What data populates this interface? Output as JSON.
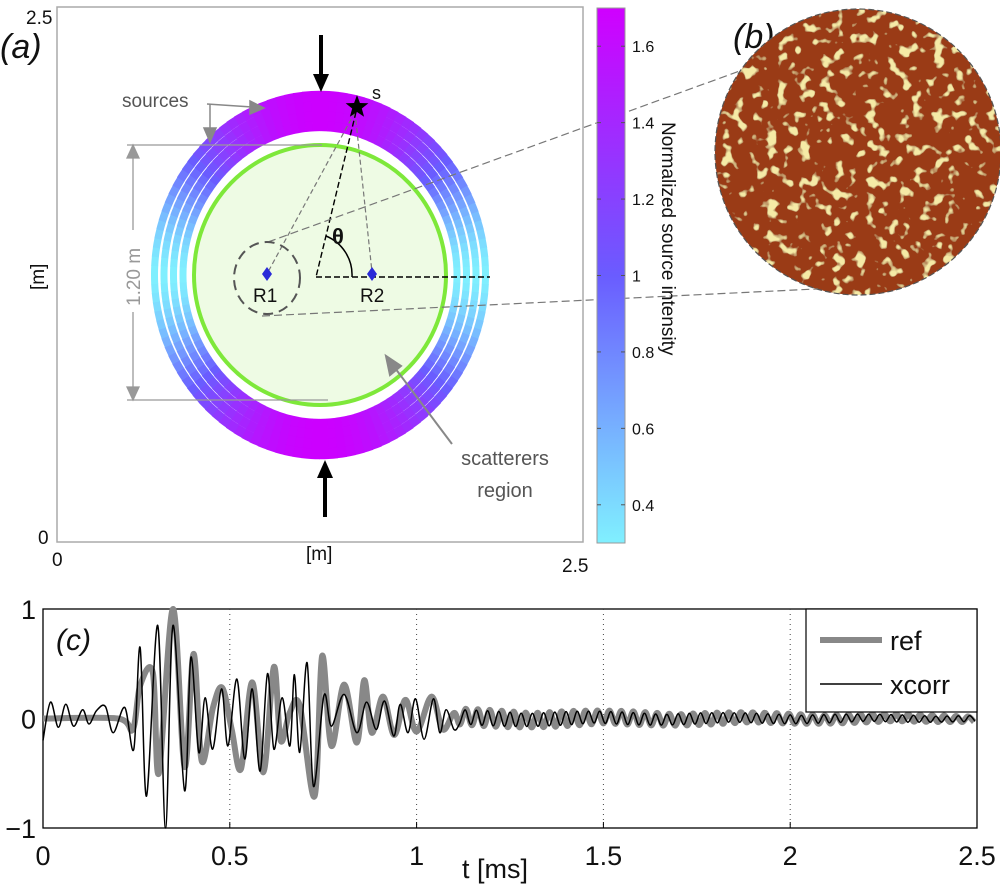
{
  "panel_a": {
    "label": "(a)",
    "x_ticks": [
      "0",
      "2.5"
    ],
    "y_ticks": [
      "0",
      "2.5"
    ],
    "x_unit": "[m]",
    "y_unit": "[m]",
    "sources_label": "sources",
    "source_label": "s",
    "receiver1": "R1",
    "receiver2": "R2",
    "angle_label": "θ",
    "diameter_label": "1.20 m",
    "region_label_1": "scatterers",
    "region_label_2": "region",
    "colors": {
      "high": "#cc00ff",
      "mid": "#6a5cff",
      "low": "#80f0ff",
      "scatter_ring": "#7ee83a",
      "scatter_fill": "#eefbe4",
      "receiver": "#2a2ad8"
    }
  },
  "colorbar": {
    "title": "Normalized source intensity",
    "range": [
      0.3,
      1.7
    ],
    "ticks": [
      "0.4",
      "0.6",
      "0.8",
      "1",
      "1.2",
      "1.4",
      "1.6"
    ]
  },
  "panel_b": {
    "label": "(b)",
    "colors": {
      "base": "#9a3a12",
      "speckle": "#e8d060"
    }
  },
  "chart_data": {
    "type": "line",
    "label": "(c)",
    "xlabel": "t [ms]",
    "ylabel": "",
    "xlim": [
      0,
      2.5
    ],
    "ylim": [
      -1,
      1
    ],
    "x_ticks": [
      "0",
      "0.5",
      "1",
      "1.5",
      "2",
      "2.5"
    ],
    "y_ticks": [
      "1",
      "0",
      "−1"
    ],
    "grid": "vertical dotted",
    "legend_position": "top-right",
    "series": [
      {
        "name": "ref",
        "color": "#888888",
        "points": [
          [
            0,
            0
          ],
          [
            0.2,
            0
          ],
          [
            0.24,
            -0.1
          ],
          [
            0.26,
            0.3
          ],
          [
            0.294,
            0.42
          ],
          [
            0.31,
            -0.5
          ],
          [
            0.348,
            1.0
          ],
          [
            0.379,
            -0.44
          ],
          [
            0.403,
            0.59
          ],
          [
            0.425,
            -0.39
          ],
          [
            0.455,
            0.1
          ],
          [
            0.48,
            0.28
          ],
          [
            0.505,
            -0.1
          ],
          [
            0.53,
            -0.46
          ],
          [
            0.56,
            0.33
          ],
          [
            0.59,
            -0.49
          ],
          [
            0.618,
            0.47
          ],
          [
            0.636,
            -0.2
          ],
          [
            0.66,
            0.05
          ],
          [
            0.687,
            0.12
          ],
          [
            0.727,
            -0.71
          ],
          [
            0.747,
            0.57
          ],
          [
            0.772,
            -0.25
          ],
          [
            0.806,
            0.31
          ],
          [
            0.84,
            -0.22
          ],
          [
            0.86,
            0.35
          ],
          [
            0.88,
            -0.13
          ],
          [
            0.91,
            0.2
          ],
          [
            0.94,
            -0.15
          ],
          [
            0.97,
            0.17
          ],
          [
            1.0,
            -0.12
          ],
          [
            1.04,
            0.2
          ],
          [
            1.07,
            -0.1
          ],
          [
            1.1,
            0.05
          ]
        ],
        "tail": {
          "t_start": 1.1,
          "t_end": 2.5,
          "period_ms": 0.032,
          "amplitude_start": 0.09,
          "amplitude_end": 0.03
        }
      },
      {
        "name": "xcorr",
        "color": "#000000",
        "points": [
          [
            0,
            -0.2
          ],
          [
            0.02,
            0.15
          ],
          [
            0.041,
            -0.08
          ],
          [
            0.061,
            0.13
          ],
          [
            0.082,
            -0.07
          ],
          [
            0.106,
            0.08
          ],
          [
            0.123,
            -0.05
          ],
          [
            0.143,
            0.07
          ],
          [
            0.167,
            0.11
          ],
          [
            0.188,
            -0.13
          ],
          [
            0.219,
            0.1
          ],
          [
            0.243,
            -0.28
          ],
          [
            0.26,
            0.65
          ],
          [
            0.277,
            -0.71
          ],
          [
            0.307,
            0.85
          ],
          [
            0.328,
            -1.0
          ],
          [
            0.348,
            0.85
          ],
          [
            0.379,
            -0.66
          ],
          [
            0.396,
            0.56
          ],
          [
            0.417,
            -0.31
          ],
          [
            0.434,
            0.19
          ],
          [
            0.454,
            -0.28
          ],
          [
            0.478,
            0.27
          ],
          [
            0.495,
            -0.25
          ],
          [
            0.519,
            0.36
          ],
          [
            0.54,
            -0.37
          ],
          [
            0.56,
            0.27
          ],
          [
            0.581,
            -0.48
          ],
          [
            0.601,
            0.41
          ],
          [
            0.618,
            -0.28
          ],
          [
            0.64,
            0.19
          ],
          [
            0.661,
            -0.25
          ],
          [
            0.673,
            0.4
          ],
          [
            0.687,
            -0.31
          ],
          [
            0.707,
            0.51
          ],
          [
            0.724,
            -0.62
          ],
          [
            0.752,
            0.21
          ],
          [
            0.772,
            -0.07
          ],
          [
            0.806,
            0.22
          ],
          [
            0.84,
            -0.13
          ],
          [
            0.866,
            0.15
          ],
          [
            0.892,
            -0.1
          ],
          [
            0.914,
            0.16
          ],
          [
            0.939,
            -0.16
          ],
          [
            0.956,
            0.13
          ],
          [
            0.977,
            -0.13
          ],
          [
            0.997,
            0.18
          ],
          [
            1.02,
            -0.19
          ],
          [
            1.045,
            0.18
          ],
          [
            1.062,
            -0.13
          ],
          [
            1.079,
            0.08
          ],
          [
            1.1,
            -0.1
          ]
        ],
        "tail": {
          "t_start": 1.1,
          "t_end": 2.5,
          "period_ms": 0.03,
          "amplitude_start": 0.08,
          "amplitude_end": 0.03
        }
      }
    ]
  }
}
